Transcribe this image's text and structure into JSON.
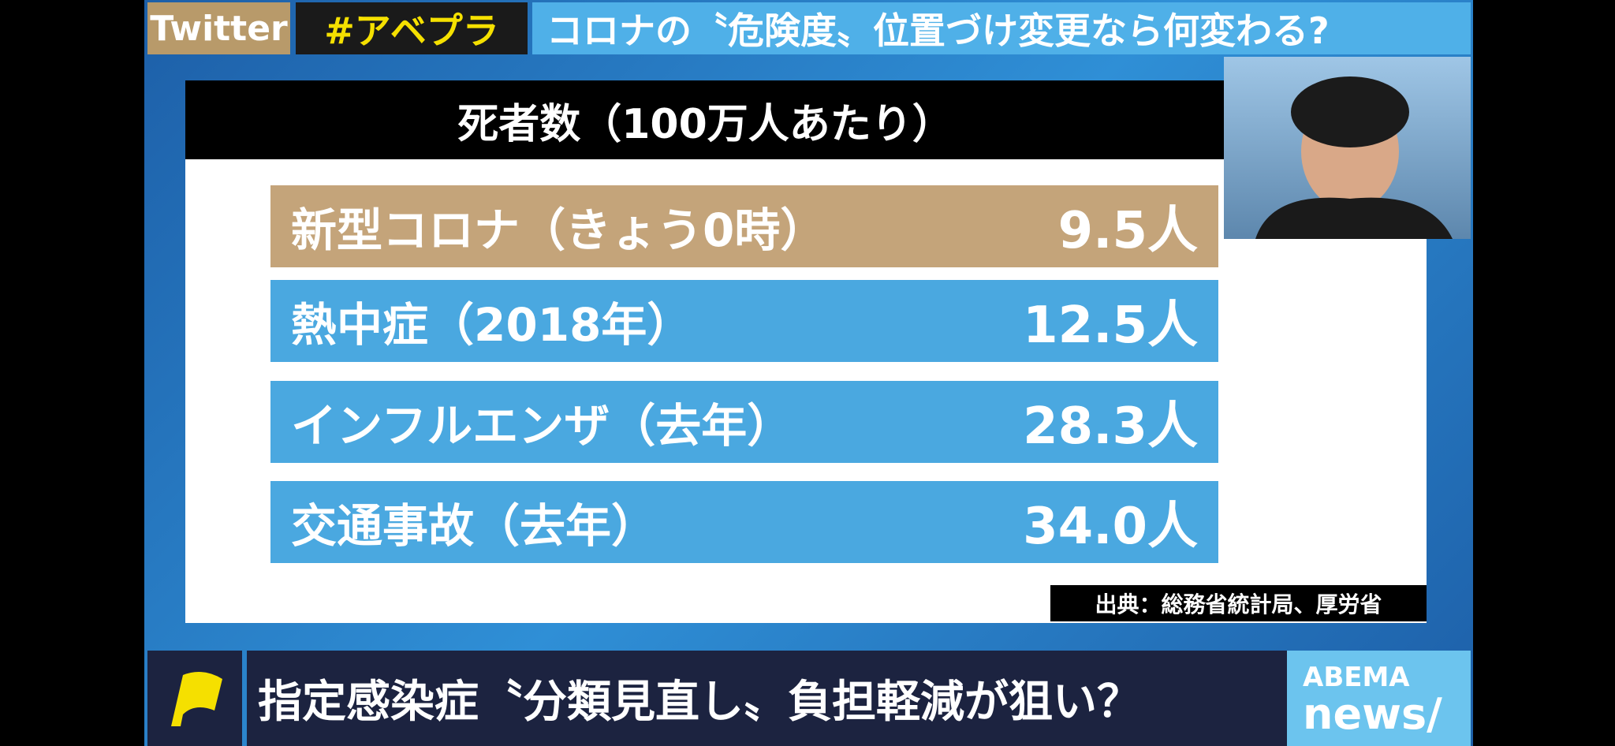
{
  "top_bar": {
    "source": "Twitter",
    "hashtag": "#アベプラ",
    "headline": "コロナの〝危険度〟位置づけ変更なら何変わる?"
  },
  "board": {
    "title": "死者数（100万人あたり）",
    "rows": [
      [
        "新型コロナ（きょう0時）",
        "9.5人"
      ],
      [
        "熱中症（2018年）",
        "12.5人"
      ],
      [
        "インフルエンザ（去年）",
        "28.3人"
      ],
      [
        "交通事故（去年）",
        "34.0人"
      ]
    ],
    "source": "出典：総務省統計局、厚労省"
  },
  "bottom_bar": {
    "caption": "指定感染症〝分類見直し〟負担軽減が狙い？",
    "logo_top": "ABEMA",
    "logo_bottom": "news/"
  }
}
